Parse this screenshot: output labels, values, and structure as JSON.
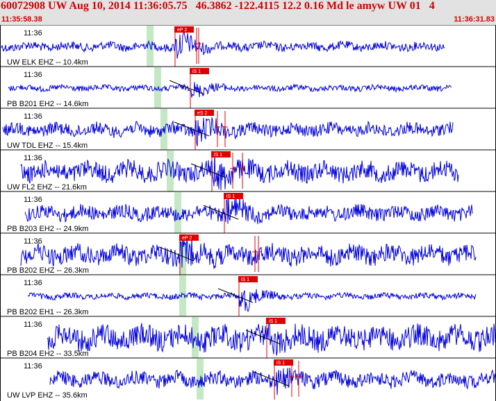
{
  "header": {
    "title": "60072908 UW Aug 10, 2014 11:36:05.75   46.3862 -122.4115 12.2 0.16 Md le amyw UW 01   4",
    "time_start": "11:35:58.38",
    "time_end": "11:36:31.83"
  },
  "colors": {
    "trace": "#0000dd",
    "pick": "#e00000",
    "theory_band": "#c4e8c4",
    "header_text": "#d00000",
    "header_bg": "#e2e2e2"
  },
  "panels": [
    {
      "station": "UW ELK EHZ -- 10.4km",
      "time_label": "11:36",
      "pick_label": "eP 2"
    },
    {
      "station": "PB B201 EH2 -- 14.6km",
      "time_label": "11:36",
      "pick_label": "iS 1"
    },
    {
      "station": "UW TDL EHZ -- 15.4km",
      "time_label": "11:36",
      "pick_label": "eS 2"
    },
    {
      "station": "UW FL2 EHZ -- 21.6km",
      "time_label": "11:36",
      "pick_label": "iS 1"
    },
    {
      "station": "PB B203 EH2 -- 24.9km",
      "time_label": "11:36",
      "pick_label": "iS 1"
    },
    {
      "station": "PB B202 EHZ -- 26.3km",
      "time_label": "11:36",
      "pick_label": "eP 2"
    },
    {
      "station": "PB B202 EH1 -- 26.3km",
      "time_label": "11:36",
      "pick_label": "iS 1"
    },
    {
      "station": "PB B204 EH2 -- 33.5km",
      "time_label": "11:36",
      "pick_label": "iS 1"
    },
    {
      "station": "UW LVP EHZ -- 35.6km",
      "time_label": "11:36",
      "pick_label": "iS 1"
    }
  ]
}
